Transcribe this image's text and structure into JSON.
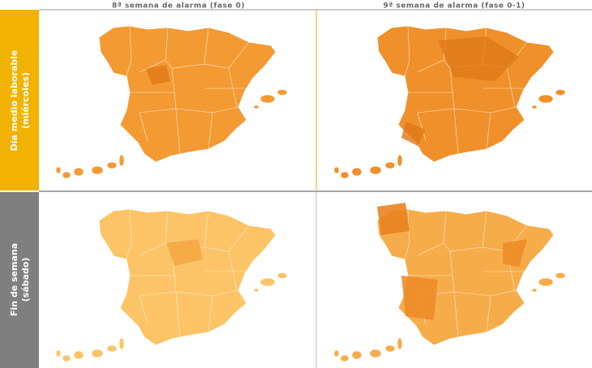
{
  "header": {
    "columns": [
      "8ª semana de alarma (fase 0)",
      "9ª semana de alarma (fase 0-1)"
    ]
  },
  "rows": [
    {
      "label": [
        "Día medio laborable",
        "(miércoles)"
      ]
    },
    {
      "label": [
        "Fin de semana",
        "(sábado)"
      ]
    }
  ]
}
